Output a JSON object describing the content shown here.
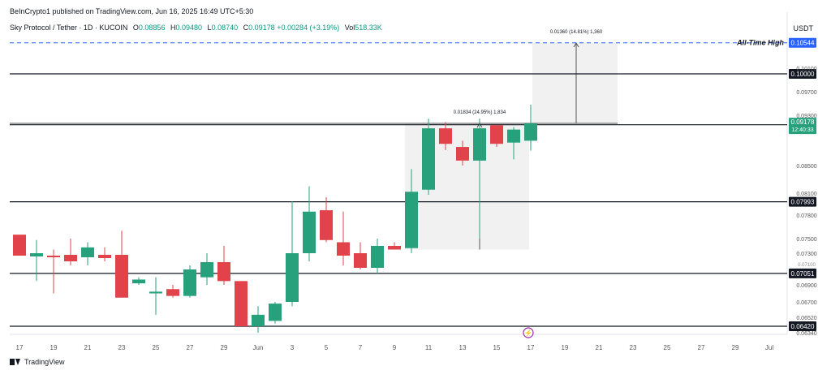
{
  "header": {
    "published": "BeInCrypto1 published on TradingView.com, Jun 16, 2025 16:49 UTC+5:30",
    "currency": "USDT"
  },
  "legend": {
    "symbol": "Sky Protocol / Tether · 1D · KUCOIN",
    "o_label": "O",
    "o": "0.08856",
    "h_label": "H",
    "h": "0.09480",
    "l_label": "L",
    "l": "0.08740",
    "c_label": "C",
    "c": "0.09178",
    "change": "+0.00284 (+3.19%)",
    "vol_label": "Vol",
    "vol": "518.33K"
  },
  "footer": {
    "brand": "TradingView"
  },
  "colors": {
    "up": "#26a17b",
    "down": "#e2434b",
    "ath": "#2962ff",
    "level": "#131722",
    "box": "#e6e6e6"
  },
  "chart_data": {
    "type": "candlestick",
    "y_axis_ticks": [
      "0.10100",
      "0.09700",
      "0.09300",
      "0.08500",
      "0.08100",
      "0.07800",
      "0.07500",
      "0.07300",
      "0.06900",
      "0.06700",
      "0.06520",
      "0.06340"
    ],
    "y_axis_extra_tick": "0.07100",
    "x_axis_ticks": [
      "17",
      "19",
      "21",
      "23",
      "25",
      "27",
      "29",
      "Jun",
      "3",
      "5",
      "7",
      "9",
      "11",
      "13",
      "15",
      "17",
      "19",
      "21",
      "23",
      "25",
      "27",
      "29",
      "Jul"
    ],
    "ylim": [
      0.063,
      0.108
    ],
    "candles": [
      {
        "o": 0.0755,
        "h": 0.0755,
        "l": 0.073,
        "c": 0.0727
      },
      {
        "o": 0.0726,
        "h": 0.0748,
        "l": 0.0695,
        "c": 0.073
      },
      {
        "o": 0.0727,
        "h": 0.0735,
        "l": 0.068,
        "c": 0.0725
      },
      {
        "o": 0.0728,
        "h": 0.075,
        "l": 0.0715,
        "c": 0.072
      },
      {
        "o": 0.0725,
        "h": 0.0745,
        "l": 0.0715,
        "c": 0.0738
      },
      {
        "o": 0.0728,
        "h": 0.0738,
        "l": 0.072,
        "c": 0.0724
      },
      {
        "o": 0.0728,
        "h": 0.076,
        "l": 0.0675,
        "c": 0.0675
      },
      {
        "o": 0.0692,
        "h": 0.07,
        "l": 0.069,
        "c": 0.0697
      },
      {
        "o": 0.068,
        "h": 0.07,
        "l": 0.0655,
        "c": 0.0682
      },
      {
        "o": 0.0685,
        "h": 0.069,
        "l": 0.0675,
        "c": 0.0677
      },
      {
        "o": 0.0677,
        "h": 0.0715,
        "l": 0.0675,
        "c": 0.071
      },
      {
        "o": 0.07,
        "h": 0.073,
        "l": 0.069,
        "c": 0.0719
      },
      {
        "o": 0.0719,
        "h": 0.074,
        "l": 0.069,
        "c": 0.0695
      },
      {
        "o": 0.0695,
        "h": 0.0695,
        "l": 0.0642,
        "c": 0.0642
      },
      {
        "o": 0.0642,
        "h": 0.0665,
        "l": 0.0634,
        "c": 0.0655
      },
      {
        "o": 0.0648,
        "h": 0.067,
        "l": 0.0645,
        "c": 0.0668
      },
      {
        "o": 0.067,
        "h": 0.08,
        "l": 0.0665,
        "c": 0.073
      },
      {
        "o": 0.073,
        "h": 0.082,
        "l": 0.072,
        "c": 0.0785
      },
      {
        "o": 0.0787,
        "h": 0.0805,
        "l": 0.0745,
        "c": 0.0748
      },
      {
        "o": 0.0745,
        "h": 0.0785,
        "l": 0.0715,
        "c": 0.0727
      },
      {
        "o": 0.073,
        "h": 0.0745,
        "l": 0.071,
        "c": 0.0712
      },
      {
        "o": 0.0712,
        "h": 0.075,
        "l": 0.0705,
        "c": 0.074
      },
      {
        "o": 0.074,
        "h": 0.0745,
        "l": 0.0735,
        "c": 0.0735
      },
      {
        "o": 0.0737,
        "h": 0.0845,
        "l": 0.073,
        "c": 0.0812
      },
      {
        "o": 0.0815,
        "h": 0.0925,
        "l": 0.0808,
        "c": 0.091
      },
      {
        "o": 0.091,
        "h": 0.092,
        "l": 0.0875,
        "c": 0.0885
      },
      {
        "o": 0.088,
        "h": 0.089,
        "l": 0.085,
        "c": 0.0858
      },
      {
        "o": 0.0858,
        "h": 0.0925,
        "l": 0.075,
        "c": 0.091
      },
      {
        "o": 0.0915,
        "h": 0.0915,
        "l": 0.088,
        "c": 0.0885
      },
      {
        "o": 0.0887,
        "h": 0.0912,
        "l": 0.086,
        "c": 0.0908
      },
      {
        "o": 0.089,
        "h": 0.0948,
        "l": 0.0874,
        "c": 0.0918
      }
    ],
    "price_lines": [
      {
        "price": 0.1,
        "label": "0.10000"
      },
      {
        "price": 0.09158,
        "label": "0.09158"
      },
      {
        "price": 0.07993,
        "label": "0.07993"
      },
      {
        "price": 0.07051,
        "label": "0.07051"
      },
      {
        "price": 0.0642,
        "label": "0.06420"
      }
    ],
    "ath_line": {
      "price": 0.10544,
      "label": "0.10544",
      "text": "All-Time High"
    },
    "current_price": {
      "price": 0.09178,
      "label": "0.09178",
      "countdown": "12:40:33"
    },
    "measures": [
      {
        "text": "0.01834 (24.95%) 1,834",
        "from": 0.0735,
        "to": 0.0918
      },
      {
        "text": "0.01360 (14.81%) 1,360",
        "from": 0.0918,
        "to": 0.1054
      }
    ],
    "event_marker": "⚡"
  }
}
